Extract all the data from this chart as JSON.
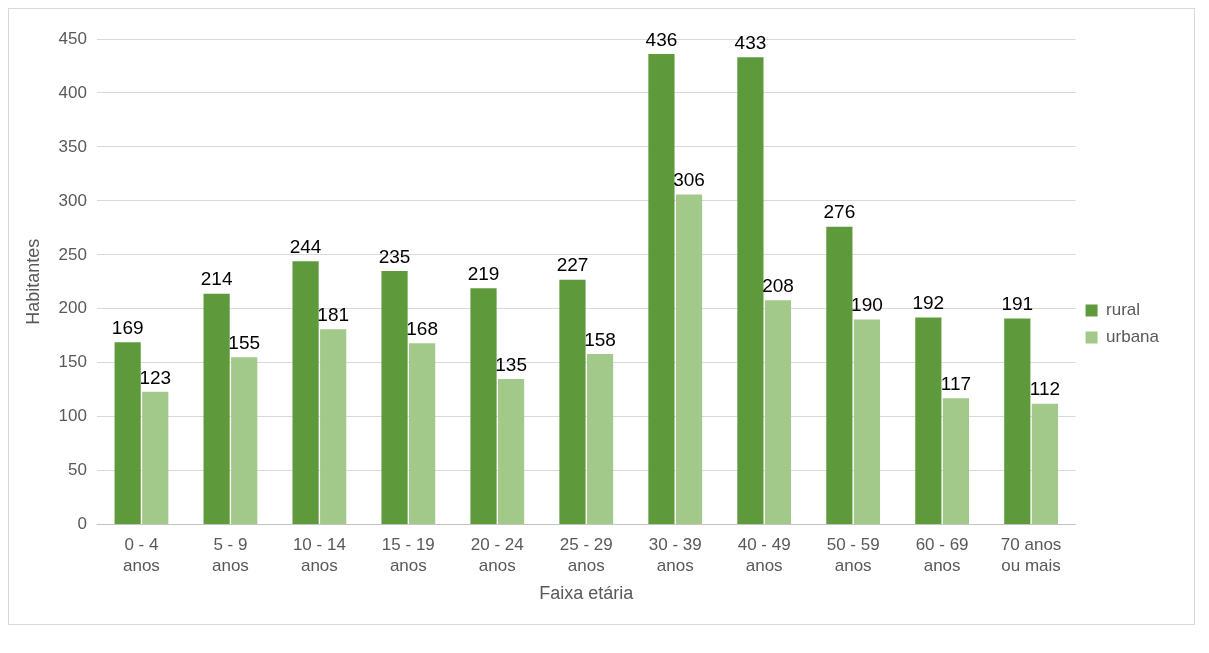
{
  "chart_data": {
    "type": "bar",
    "xlabel": "Faixa etária",
    "ylabel": "Habitantes",
    "categories": [
      "0 - 4 anos",
      "5 - 9 anos",
      "10 - 14 anos",
      "15 - 19 anos",
      "20 - 24 anos",
      "25 - 29 anos",
      "30 - 39 anos",
      "40 - 49 anos",
      "50 - 59 anos",
      "60 - 69 anos",
      "70 anos ou mais"
    ],
    "series": [
      {
        "name": "rural",
        "color": "#5e9a3c",
        "values": [
          169,
          214,
          244,
          235,
          219,
          227,
          436,
          433,
          276,
          192,
          191
        ]
      },
      {
        "name": "urbana",
        "color": "#a2c88a",
        "values": [
          123,
          155,
          181,
          168,
          135,
          158,
          306,
          208,
          190,
          117,
          112
        ]
      }
    ],
    "ylim": [
      0,
      450
    ],
    "yticks": [
      0,
      50,
      100,
      150,
      200,
      250,
      300,
      350,
      400,
      450
    ],
    "grid": "y",
    "legend": "right",
    "data_labels": true
  }
}
